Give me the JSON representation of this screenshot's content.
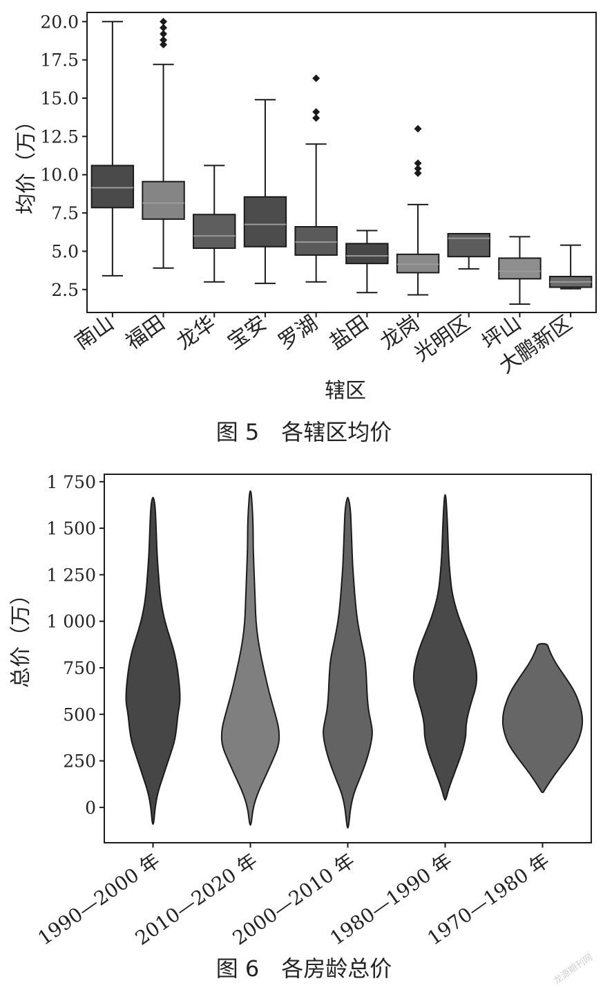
{
  "chart_data": [
    {
      "type": "box",
      "caption": "图 5　各辖区均价",
      "xlabel": "辖区",
      "ylabel": "均价（万）",
      "ylim": [
        1.0,
        20.6
      ],
      "yticks": [
        "2.5",
        "5.0",
        "7.5",
        "10.0",
        "12.5",
        "15.0",
        "17.5",
        "20.0"
      ],
      "categories": [
        "南山",
        "福田",
        "龙华",
        "宝安",
        "罗湖",
        "盐田",
        "龙岗",
        "光明区",
        "坪山",
        "大鹏新区"
      ],
      "boxes": [
        {
          "label": "南山",
          "color": "#4a4a4a",
          "whisker_low": 3.4,
          "q1": 7.85,
          "median": 9.15,
          "q3": 10.6,
          "whisker_high": 20.0,
          "outliers": []
        },
        {
          "label": "福田",
          "color": "#858585",
          "whisker_low": 3.9,
          "q1": 7.1,
          "median": 8.15,
          "q3": 9.55,
          "whisker_high": 17.2,
          "outliers": [
            18.5,
            18.8,
            19.2,
            19.6,
            20.0
          ]
        },
        {
          "label": "龙华",
          "color": "#5e5e5e",
          "whisker_low": 3.0,
          "q1": 5.2,
          "median": 6.0,
          "q3": 7.4,
          "whisker_high": 10.6,
          "outliers": []
        },
        {
          "label": "宝安",
          "color": "#4c4c4c",
          "whisker_low": 2.9,
          "q1": 5.3,
          "median": 6.75,
          "q3": 8.55,
          "whisker_high": 14.9,
          "outliers": []
        },
        {
          "label": "罗湖",
          "color": "#5a5a5a",
          "whisker_low": 3.0,
          "q1": 4.75,
          "median": 5.6,
          "q3": 6.6,
          "whisker_high": 12.0,
          "outliers": [
            13.7,
            14.1,
            16.3
          ]
        },
        {
          "label": "盐田",
          "color": "#464646",
          "whisker_low": 2.3,
          "q1": 4.2,
          "median": 4.7,
          "q3": 5.5,
          "whisker_high": 6.35,
          "outliers": []
        },
        {
          "label": "龙岗",
          "color": "#8a8a8a",
          "whisker_low": 2.15,
          "q1": 3.6,
          "median": 4.15,
          "q3": 4.8,
          "whisker_high": 8.05,
          "outliers": [
            10.1,
            10.4,
            10.75,
            13.0
          ]
        },
        {
          "label": "光明区",
          "color": "#5c5c5c",
          "whisker_low": 3.85,
          "q1": 4.65,
          "median": 5.85,
          "q3": 6.15,
          "whisker_high": 6.15,
          "outliers": []
        },
        {
          "label": "坪山",
          "color": "#8e8e8e",
          "whisker_low": 1.55,
          "q1": 3.2,
          "median": 3.7,
          "q3": 4.55,
          "whisker_high": 5.95,
          "outliers": []
        },
        {
          "label": "大鹏新区",
          "color": "#6a6a6a",
          "whisker_low": 2.55,
          "q1": 2.65,
          "median": 3.0,
          "q3": 3.35,
          "whisker_high": 5.4,
          "outliers": []
        }
      ]
    },
    {
      "type": "violin",
      "caption": "图 6　各房龄总价",
      "xlabel": "",
      "ylabel": "总价（万）",
      "ylim": [
        -190,
        1790
      ],
      "yticks": [
        {
          "value": 0,
          "label": "0"
        },
        {
          "value": 250,
          "label": "250"
        },
        {
          "value": 500,
          "label": "500"
        },
        {
          "value": 750,
          "label": "750"
        },
        {
          "value": 1000,
          "label": "1 000"
        },
        {
          "value": 1250,
          "label": "1 250"
        },
        {
          "value": 1500,
          "label": "1 500"
        },
        {
          "value": 1750,
          "label": "1 750"
        }
      ],
      "categories": [
        "1990—2000 年",
        "2010—2020 年",
        "2000—2010 年",
        "1980—1990 年",
        "1970—1980 年"
      ],
      "violins": [
        {
          "label": "1990—2000 年",
          "color": "#464646",
          "min": -90,
          "max": 1665,
          "profile": [
            [
              -90,
              1
            ],
            [
              0,
              3
            ],
            [
              80,
              7
            ],
            [
              160,
              14
            ],
            [
              250,
              22
            ],
            [
              350,
              31
            ],
            [
              420,
              34
            ],
            [
              500,
              36
            ],
            [
              560,
              39
            ],
            [
              620,
              39
            ],
            [
              700,
              37
            ],
            [
              780,
              34
            ],
            [
              860,
              29
            ],
            [
              950,
              21
            ],
            [
              1050,
              14
            ],
            [
              1150,
              10
            ],
            [
              1250,
              8
            ],
            [
              1350,
              6
            ],
            [
              1450,
              5
            ],
            [
              1550,
              4
            ],
            [
              1620,
              3
            ],
            [
              1665,
              1
            ]
          ]
        },
        {
          "label": "2010—2020 年",
          "color": "#7f7f7f",
          "min": -95,
          "max": 1700,
          "profile": [
            [
              -95,
              1
            ],
            [
              0,
              4
            ],
            [
              80,
              11
            ],
            [
              160,
              21
            ],
            [
              250,
              32
            ],
            [
              330,
              41
            ],
            [
              400,
              42
            ],
            [
              460,
              39
            ],
            [
              540,
              33
            ],
            [
              620,
              27
            ],
            [
              700,
              22
            ],
            [
              800,
              16
            ],
            [
              900,
              11
            ],
            [
              1000,
              8
            ],
            [
              1100,
              7
            ],
            [
              1200,
              6
            ],
            [
              1300,
              5
            ],
            [
              1400,
              4
            ],
            [
              1500,
              4
            ],
            [
              1600,
              3
            ],
            [
              1700,
              1
            ]
          ]
        },
        {
          "label": "2000—2010 年",
          "color": "#636363",
          "min": -110,
          "max": 1665,
          "profile": [
            [
              -110,
              1
            ],
            [
              0,
              4
            ],
            [
              80,
              9
            ],
            [
              160,
              18
            ],
            [
              250,
              27
            ],
            [
              330,
              33
            ],
            [
              400,
              36
            ],
            [
              450,
              34
            ],
            [
              520,
              30
            ],
            [
              600,
              28
            ],
            [
              700,
              27
            ],
            [
              800,
              25
            ],
            [
              900,
              19
            ],
            [
              1000,
              14
            ],
            [
              1100,
              11
            ],
            [
              1200,
              9
            ],
            [
              1300,
              7
            ],
            [
              1400,
              6
            ],
            [
              1500,
              5
            ],
            [
              1600,
              4
            ],
            [
              1665,
              1
            ]
          ]
        },
        {
          "label": "1980—1990 年",
          "color": "#494949",
          "min": 40,
          "max": 1680,
          "profile": [
            [
              40,
              1
            ],
            [
              100,
              5
            ],
            [
              200,
              15
            ],
            [
              300,
              25
            ],
            [
              380,
              30
            ],
            [
              440,
              30
            ],
            [
              500,
              33
            ],
            [
              580,
              39
            ],
            [
              650,
              45
            ],
            [
              720,
              46
            ],
            [
              800,
              42
            ],
            [
              880,
              35
            ],
            [
              960,
              26
            ],
            [
              1050,
              17
            ],
            [
              1150,
              10
            ],
            [
              1250,
              7
            ],
            [
              1350,
              5
            ],
            [
              1450,
              4
            ],
            [
              1550,
              3
            ],
            [
              1680,
              1
            ]
          ]
        },
        {
          "label": "1970—1980 年",
          "color": "#666666",
          "min": 80,
          "max": 880,
          "profile": [
            [
              80,
              1
            ],
            [
              100,
              4
            ],
            [
              180,
              18
            ],
            [
              260,
              35
            ],
            [
              340,
              50
            ],
            [
              420,
              57
            ],
            [
              480,
              58
            ],
            [
              540,
              55
            ],
            [
              620,
              47
            ],
            [
              700,
              33
            ],
            [
              780,
              18
            ],
            [
              850,
              9
            ],
            [
              880,
              7
            ]
          ]
        }
      ]
    }
  ],
  "watermark": "龙源期刊网"
}
